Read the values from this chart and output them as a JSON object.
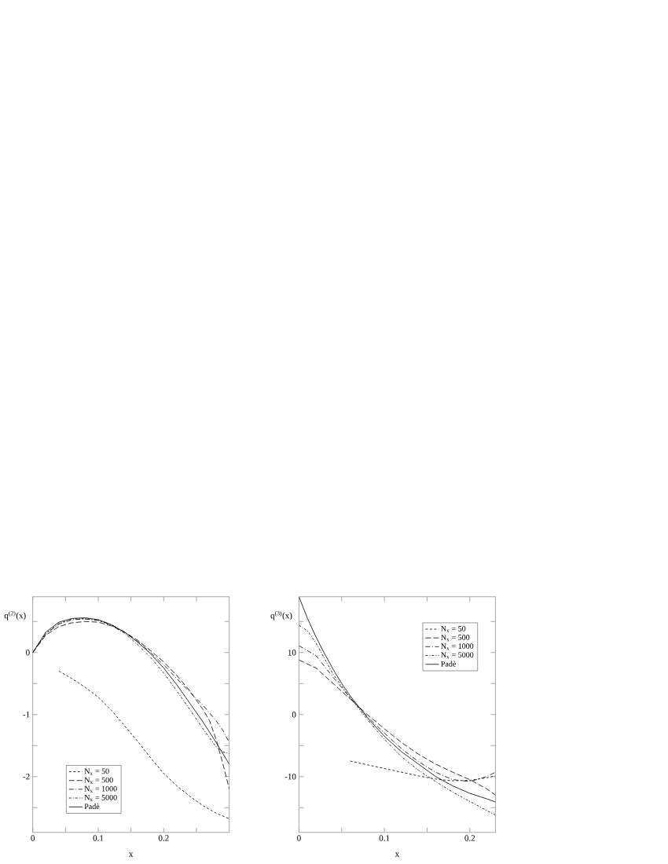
{
  "chart_data": [
    {
      "type": "line",
      "xlabel": "x",
      "ylabel": "q$^{(2)}$(x)",
      "xlim": [
        0,
        0.3
      ],
      "ylim": [
        -2.9,
        0.9
      ],
      "xticks": [
        0,
        {
          "value": 0.05,
          "label": null
        },
        0.1,
        {
          "value": 0.15,
          "label": null
        },
        0.2,
        {
          "value": 0.25,
          "label": null
        }
      ],
      "yticks": [
        {
          "value": -2.5,
          "label": null
        },
        -2,
        {
          "value": -1.5,
          "label": null
        },
        -1,
        {
          "value": -0.5,
          "label": null
        },
        0,
        {
          "value": 0.5,
          "label": null
        }
      ],
      "legend": "bottom left",
      "marker": "none",
      "series": [
        {
          "name": "N$_{x}$ = 50",
          "color": "#000000",
          "line_style": "dashed",
          "x": [
            0.04,
            0.06,
            0.08,
            0.1,
            0.12,
            0.14,
            0.16,
            0.18,
            0.2,
            0.22,
            0.24,
            0.26,
            0.28,
            0.3
          ],
          "values": [
            -0.3,
            -0.42,
            -0.56,
            -0.72,
            -0.93,
            -1.18,
            -1.43,
            -1.7,
            -1.95,
            -2.15,
            -2.32,
            -2.47,
            -2.59,
            -2.68
          ]
        },
        {
          "name": "N$_{x}$ = 500",
          "color": "#000000",
          "line_style": "long dashed",
          "x": [
            0,
            0.02,
            0.04,
            0.06,
            0.08,
            0.1,
            0.12,
            0.14,
            0.16,
            0.18,
            0.2,
            0.22,
            0.24,
            0.26,
            0.27,
            0.28,
            0.29,
            0.3
          ],
          "values": [
            0,
            0.28,
            0.42,
            0.48,
            0.5,
            0.49,
            0.43,
            0.33,
            0.2,
            0.03,
            -0.15,
            -0.37,
            -0.62,
            -0.92,
            -1.1,
            -1.4,
            -1.78,
            -2.2
          ]
        },
        {
          "name": "N$_{x}$ = 1000",
          "color": "#000000",
          "line_style": "long dash dot",
          "x": [
            0,
            0.02,
            0.04,
            0.06,
            0.08,
            0.1,
            0.12,
            0.14,
            0.16,
            0.18,
            0.2,
            0.22,
            0.24,
            0.26,
            0.28,
            0.29,
            0.3
          ],
          "values": [
            0,
            0.3,
            0.46,
            0.53,
            0.54,
            0.52,
            0.45,
            0.33,
            0.18,
            0.0,
            -0.2,
            -0.42,
            -0.64,
            -0.85,
            -1.1,
            -1.25,
            -1.45
          ]
        },
        {
          "name": "N$_{x}$ = 5000",
          "color": "#000000",
          "line_style": "dash dot",
          "x": [
            0,
            0.02,
            0.04,
            0.06,
            0.08,
            0.1,
            0.12,
            0.14,
            0.16,
            0.18,
            0.2,
            0.22,
            0.24,
            0.26,
            0.28,
            0.29,
            0.3
          ],
          "values": [
            0,
            0.31,
            0.47,
            0.54,
            0.55,
            0.52,
            0.44,
            0.31,
            0.13,
            -0.08,
            -0.33,
            -0.62,
            -0.92,
            -1.23,
            -1.52,
            -1.6,
            -1.63
          ]
        },
        {
          "name": "Padè",
          "color": "#000000",
          "line_style": "solid",
          "x": [
            0,
            0.02,
            0.04,
            0.06,
            0.08,
            0.1,
            0.12,
            0.14,
            0.16,
            0.18,
            0.2,
            0.22,
            0.24,
            0.26,
            0.28,
            0.3
          ],
          "values": [
            0,
            0.33,
            0.49,
            0.55,
            0.56,
            0.53,
            0.45,
            0.33,
            0.17,
            -0.02,
            -0.25,
            -0.52,
            -0.82,
            -1.12,
            -1.45,
            -1.8
          ]
        }
      ]
    },
    {
      "type": "line",
      "xlabel": "x",
      "ylabel": "q$^{(3)}$(x)",
      "xlim": [
        0,
        0.23
      ],
      "ylim": [
        -19,
        19
      ],
      "xticks": [
        0,
        {
          "value": 0.05,
          "label": null
        },
        0.1,
        {
          "value": 0.15,
          "label": null
        },
        0.2
      ],
      "yticks": [
        {
          "value": -15,
          "label": null
        },
        -10,
        {
          "value": -5,
          "label": null
        },
        0,
        {
          "value": 5,
          "label": null
        },
        10,
        {
          "value": 15,
          "label": null
        }
      ],
      "legend": "top right",
      "marker": "none",
      "series": [
        {
          "name": "N$_{x}$ = 50",
          "color": "#000000",
          "line_style": "dashed",
          "x": [
            0.06,
            0.08,
            0.1,
            0.12,
            0.14,
            0.16,
            0.18,
            0.2,
            0.22,
            0.23
          ],
          "values": [
            -7.5,
            -8.1,
            -8.7,
            -9.3,
            -9.9,
            -10.4,
            -10.7,
            -10.6,
            -10.2,
            -9.9
          ]
        },
        {
          "name": "N$_{x}$ = 500",
          "color": "#000000",
          "line_style": "long dashed",
          "x": [
            0,
            0.02,
            0.04,
            0.06,
            0.08,
            0.1,
            0.12,
            0.14,
            0.16,
            0.18,
            0.2,
            0.22,
            0.23
          ],
          "values": [
            8.8,
            7.5,
            5,
            2.5,
            0,
            -2.3,
            -4.5,
            -6.4,
            -8,
            -9.3,
            -10.5,
            -12,
            -13
          ]
        },
        {
          "name": "N$_{x}$ = 1000",
          "color": "#000000",
          "line_style": "long dash dot",
          "x": [
            0,
            0.02,
            0.04,
            0.06,
            0.08,
            0.1,
            0.12,
            0.14,
            0.16,
            0.18,
            0.2,
            0.22,
            0.23
          ],
          "values": [
            11.1,
            9.5,
            6,
            2.7,
            -0.3,
            -3,
            -5.5,
            -7.6,
            -9.3,
            -10.5,
            -10.8,
            -10,
            -9.3
          ]
        },
        {
          "name": "N$_{x}$ = 5000",
          "color": "#000000",
          "line_style": "dash dot",
          "x": [
            0,
            0.01,
            0.02,
            0.04,
            0.06,
            0.08,
            0.1,
            0.12,
            0.14,
            0.16,
            0.18,
            0.2,
            0.22,
            0.23
          ],
          "values": [
            14.4,
            13.5,
            11.5,
            6.5,
            2.7,
            -0.8,
            -4,
            -6.8,
            -9,
            -10.8,
            -12.5,
            -14,
            -15.5,
            -16.2
          ]
        },
        {
          "name": "Padè",
          "color": "#000000",
          "line_style": "solid",
          "x": [
            0,
            0.01,
            0.02,
            0.03,
            0.04,
            0.05,
            0.06,
            0.08,
            0.1,
            0.12,
            0.14,
            0.16,
            0.18,
            0.2,
            0.22,
            0.23
          ],
          "values": [
            19,
            15.5,
            12.5,
            9.8,
            7.3,
            5,
            3,
            -0.5,
            -3.5,
            -6,
            -8,
            -10,
            -11.5,
            -12.7,
            -13.6,
            -14.1
          ]
        }
      ]
    }
  ]
}
